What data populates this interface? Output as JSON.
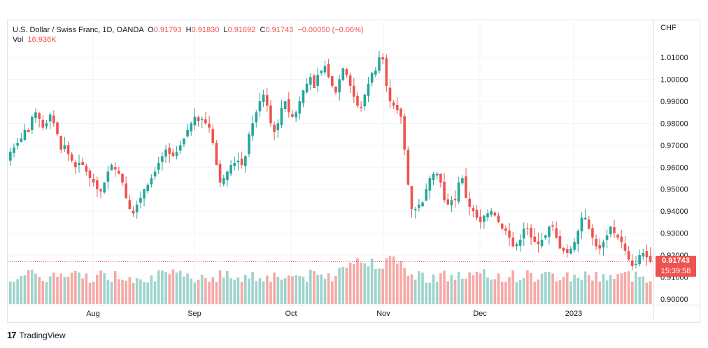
{
  "header": {
    "symbol": "U.S. Dollar / Swiss Franc, 1D, OANDA",
    "o_label": "O",
    "o_value": "0.91793",
    "h_label": "H",
    "h_value": "0.91830",
    "l_label": "L",
    "l_value": "0.91692",
    "c_label": "C",
    "c_value": "0.91743",
    "change": "−0.00050 (−0.06%)",
    "vol_label": "Vol",
    "vol_value": "16.936K"
  },
  "currency_label": "CHF",
  "last_price": {
    "value": "0.91743",
    "countdown": "15:39:58"
  },
  "brand": "TradingView",
  "colors": {
    "up": "#26a69a",
    "down": "#ef5350",
    "up_vol": "#9ed4cc",
    "down_vol": "#f5a9a6"
  },
  "chart_data": {
    "type": "candlestick",
    "y_axis_ticks": [
      "1.01000",
      "1.00000",
      "0.99000",
      "0.98000",
      "0.97000",
      "0.96000",
      "0.95000",
      "0.94000",
      "0.93000",
      "0.92000",
      "0.91000",
      "0.90000"
    ],
    "ylim": [
      0.9,
      1.015
    ],
    "x_axis_ticks": [
      "Aug",
      "Sep",
      "Oct",
      "Nov",
      "Dec",
      "2023"
    ],
    "closes": [
      0.967,
      0.969,
      0.971,
      0.973,
      0.977,
      0.976,
      0.983,
      0.985,
      0.982,
      0.978,
      0.98,
      0.984,
      0.98,
      0.975,
      0.968,
      0.97,
      0.966,
      0.963,
      0.96,
      0.962,
      0.961,
      0.958,
      0.955,
      0.953,
      0.95,
      0.949,
      0.953,
      0.958,
      0.961,
      0.959,
      0.957,
      0.953,
      0.946,
      0.941,
      0.939,
      0.943,
      0.946,
      0.95,
      0.952,
      0.955,
      0.958,
      0.962,
      0.965,
      0.968,
      0.966,
      0.965,
      0.967,
      0.97,
      0.973,
      0.977,
      0.98,
      0.983,
      0.981,
      0.982,
      0.98,
      0.978,
      0.971,
      0.961,
      0.953,
      0.955,
      0.958,
      0.961,
      0.962,
      0.963,
      0.961,
      0.965,
      0.975,
      0.98,
      0.985,
      0.99,
      0.993,
      0.988,
      0.98,
      0.976,
      0.98,
      0.987,
      0.99,
      0.985,
      0.983,
      0.985,
      0.99,
      0.995,
      0.998,
      1.001,
      0.996,
      1.002,
      1.004,
      1.006,
      1.001,
      0.997,
      0.994,
      1.0,
      1.005,
      1.002,
      0.997,
      0.992,
      0.988,
      0.987,
      0.993,
      0.998,
      1.003,
      1.004,
      1.01,
      1.009,
      0.997,
      0.99,
      0.988,
      0.986,
      0.983,
      0.968,
      0.952,
      0.941,
      0.941,
      0.943,
      0.944,
      0.95,
      0.955,
      0.957,
      0.957,
      0.953,
      0.945,
      0.943,
      0.945,
      0.945,
      0.953,
      0.955,
      0.946,
      0.942,
      0.94,
      0.937,
      0.935,
      0.938,
      0.939,
      0.94,
      0.938,
      0.935,
      0.932,
      0.931,
      0.928,
      0.924,
      0.925,
      0.927,
      0.932,
      0.932,
      0.928,
      0.926,
      0.925,
      0.927,
      0.929,
      0.933,
      0.933,
      0.928,
      0.923,
      0.922,
      0.921,
      0.923,
      0.926,
      0.931,
      0.937,
      0.937,
      0.932,
      0.928,
      0.924,
      0.923,
      0.926,
      0.929,
      0.933,
      0.93,
      0.928,
      0.926,
      0.922,
      0.918,
      0.915,
      0.916,
      0.92,
      0.921,
      0.919,
      0.917
    ],
    "volume_max": 31
  }
}
